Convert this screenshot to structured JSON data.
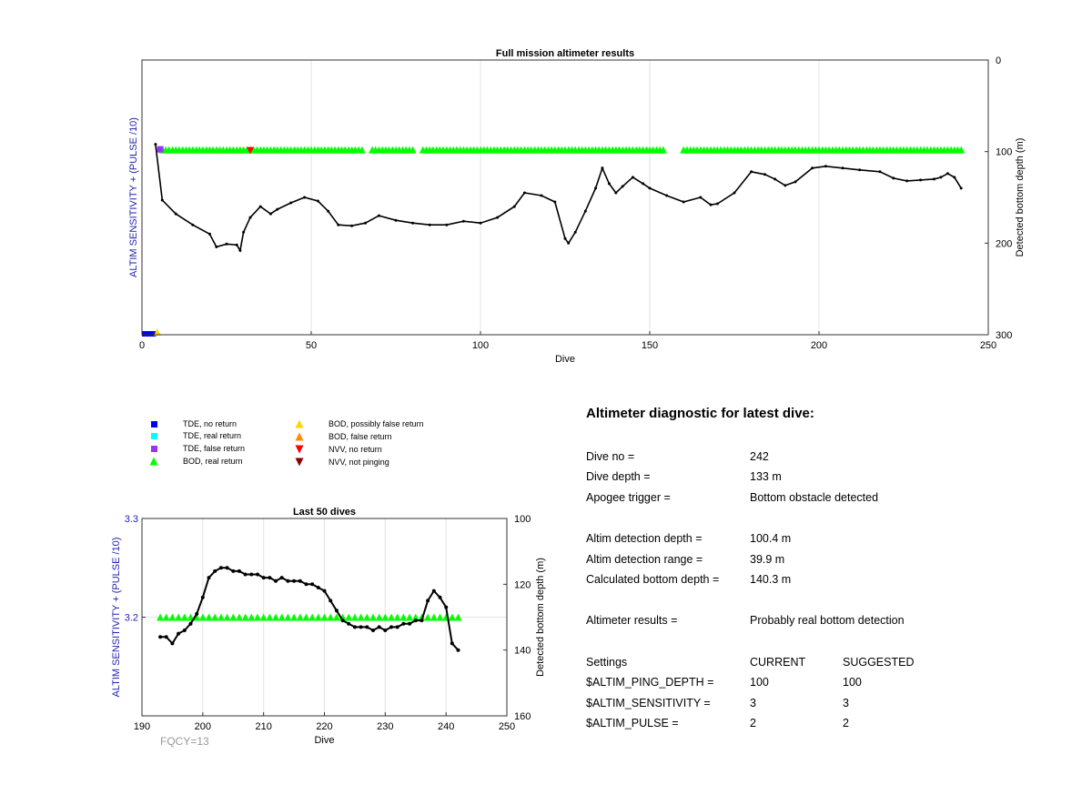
{
  "chart_data": [
    {
      "type": "line",
      "title": "Full mission altimeter results",
      "xlabel": "Dive",
      "ylabel_left": "ALTIM SENSITIVITY + (PULSE /10)",
      "ylabel_right": "Detected bottom depth (m)",
      "xlim": [
        0,
        250
      ],
      "ylim_right": [
        0,
        300
      ],
      "xticks": [
        "0",
        "50",
        "100",
        "150",
        "200",
        "250"
      ],
      "yticks_right": [
        "0",
        "100",
        "200",
        "300"
      ],
      "grid": "x",
      "bottom_depth": {
        "x": [
          4,
          6,
          10,
          15,
          20,
          22,
          25,
          28,
          29,
          30,
          32,
          35,
          38,
          40,
          44,
          48,
          52,
          55,
          58,
          62,
          66,
          70,
          75,
          80,
          85,
          90,
          95,
          100,
          105,
          110,
          113,
          118,
          122,
          125,
          126,
          128,
          131,
          134,
          136,
          138,
          140,
          142,
          145,
          148,
          150,
          155,
          160,
          165,
          168,
          170,
          175,
          180,
          184,
          187,
          190,
          193,
          198,
          202,
          207,
          212,
          218,
          222,
          226,
          230,
          234,
          236,
          238,
          240,
          242
        ],
        "y": [
          92,
          153,
          168,
          180,
          190,
          204,
          201,
          202,
          208,
          188,
          172,
          160,
          168,
          163,
          156,
          150,
          154,
          165,
          180,
          181,
          178,
          170,
          175,
          178,
          180,
          180,
          176,
          178,
          172,
          160,
          145,
          148,
          155,
          195,
          200,
          188,
          165,
          140,
          118,
          135,
          145,
          138,
          128,
          135,
          140,
          148,
          155,
          150,
          158,
          157,
          145,
          122,
          125,
          130,
          137,
          133,
          118,
          116,
          118,
          120,
          122,
          129,
          132,
          131,
          130,
          128,
          124,
          128,
          140
        ]
      },
      "bod_real_return": {
        "x_range": [
          6,
          242
        ],
        "y": 98,
        "gaps": [
          [
            66,
            67
          ],
          [
            81,
            82
          ],
          [
            155,
            159
          ]
        ]
      },
      "tde_no_return": {
        "x_range": [
          0,
          3
        ],
        "y": 300
      },
      "tde_false_return": {
        "x": [
          5
        ],
        "y": 98
      },
      "bod_possibly_false_return": {
        "x": [
          4
        ],
        "y": 300
      },
      "nvv_no_return": {
        "x": [
          32
        ],
        "y": 98
      }
    },
    {
      "type": "line",
      "title": "Last 50 dives",
      "xlabel": "Dive",
      "ylabel_left": "ALTIM SENSITIVITY + (PULSE /10)",
      "ylabel_right": "Detected bottom depth (m)",
      "xlim": [
        190,
        250
      ],
      "ylim_left": [
        3.3,
        3.1
      ],
      "ylim_right": [
        100,
        160
      ],
      "xticks": [
        "190",
        "200",
        "210",
        "220",
        "230",
        "240",
        "250"
      ],
      "yticks_left": [
        "3.3",
        "3.2"
      ],
      "yticks_right": [
        "100",
        "120",
        "140",
        "160"
      ],
      "grid": "x",
      "bottom_depth": {
        "x": [
          193,
          194,
          195,
          196,
          197,
          198,
          199,
          200,
          201,
          202,
          203,
          204,
          205,
          206,
          207,
          208,
          209,
          210,
          211,
          212,
          213,
          214,
          215,
          216,
          217,
          218,
          219,
          220,
          221,
          222,
          223,
          224,
          225,
          226,
          227,
          228,
          229,
          230,
          231,
          232,
          233,
          234,
          235,
          236,
          237,
          238,
          239,
          240,
          241,
          242
        ],
        "y": [
          136,
          136,
          138,
          135,
          134,
          132,
          129,
          124,
          118,
          116,
          115,
          115,
          116,
          116,
          117,
          117,
          117,
          118,
          118,
          119,
          118,
          119,
          119,
          119,
          120,
          120,
          121,
          122,
          125,
          128,
          131,
          132,
          133,
          133,
          133,
          134,
          133,
          134,
          133,
          133,
          132,
          132,
          131,
          131,
          125,
          122,
          124,
          127,
          138,
          140
        ]
      },
      "bod_real_return": {
        "x_range": [
          193,
          242
        ],
        "y": 3.2
      }
    }
  ],
  "legend": [
    {
      "label": "TDE, no return",
      "color": "#0000ff",
      "shape": "square"
    },
    {
      "label": "TDE, real return",
      "color": "#00ffff",
      "shape": "square"
    },
    {
      "label": "TDE, false return",
      "color": "#9b30ff",
      "shape": "square"
    },
    {
      "label": "BOD, real return",
      "color": "#00ff00",
      "shape": "triangle-up"
    },
    {
      "label": "BOD, possibly false return",
      "color": "#ffd700",
      "shape": "triangle-up"
    },
    {
      "label": "BOD, false return",
      "color": "#ff8c00",
      "shape": "triangle-up"
    },
    {
      "label": "NVV, no return",
      "color": "#ff0000",
      "shape": "triangle-down"
    },
    {
      "label": "NVV, not pinging",
      "color": "#8b0000",
      "shape": "triangle-down"
    }
  ],
  "diagnostic": {
    "title": "Altimeter diagnostic for latest dive:",
    "rows": [
      {
        "label": "Dive no =",
        "value": "242"
      },
      {
        "label": "Dive depth =",
        "value": "133 m"
      },
      {
        "label": "Apogee trigger =",
        "value": "Bottom obstacle detected"
      },
      {
        "label": "Altim detection depth =",
        "value": "100.4 m"
      },
      {
        "label": "Altim detection range =",
        "value": "39.9 m"
      },
      {
        "label": "Calculated bottom depth =",
        "value": "140.3 m"
      },
      {
        "label": "Altimeter results =",
        "value": "Probably real bottom detection"
      }
    ],
    "settings": {
      "header": {
        "label": "Settings",
        "current": "CURRENT",
        "suggested": "SUGGESTED"
      },
      "rows": [
        {
          "label": "$ALTIM_PING_DEPTH =",
          "current": "100",
          "suggested": "100"
        },
        {
          "label": "$ALTIM_SENSITIVITY =",
          "current": "3",
          "suggested": "3"
        },
        {
          "label": "$ALTIM_PULSE =",
          "current": "2",
          "suggested": "2"
        }
      ]
    }
  },
  "footer_note": "FQCY=13"
}
